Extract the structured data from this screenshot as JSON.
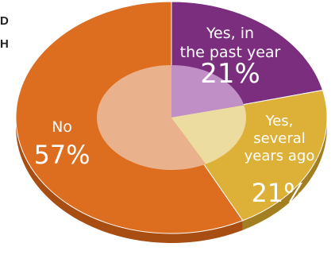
{
  "side_labels": [
    "D",
    "H"
  ],
  "chart_data": {
    "type": "pie",
    "title": "",
    "style": "3d-tilted",
    "slices": [
      {
        "label_lines": [
          "Yes, in",
          "the past year"
        ],
        "value": 21,
        "value_text": "21%",
        "color": "#7b2e7d",
        "side_color": "#55205a",
        "inner_color": "#c08fc6"
      },
      {
        "label_lines": [
          "Yes,",
          "several",
          "years ago"
        ],
        "value": 21,
        "value_text": "21%",
        "color": "#ddb038",
        "side_color": "#a47f22",
        "inner_color": "#eddca0"
      },
      {
        "label_lines": [
          "No"
        ],
        "value": 57,
        "value_text": "57%",
        "color": "#dd6d1f",
        "side_color": "#a94e12",
        "inner_color": "#eab28c"
      }
    ],
    "legend": "none",
    "data_labels": "inside-slices"
  }
}
